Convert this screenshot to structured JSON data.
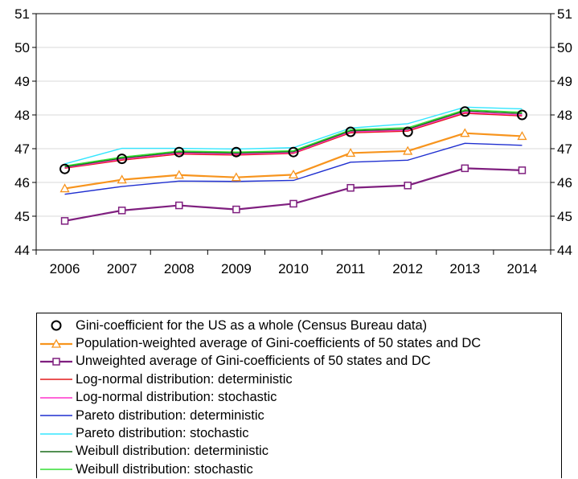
{
  "chart_data": {
    "type": "line",
    "x": [
      "2006",
      "2007",
      "2008",
      "2009",
      "2010",
      "2011",
      "2012",
      "2013",
      "2014"
    ],
    "ylim": [
      44,
      51
    ],
    "yticks": [
      44,
      45,
      46,
      47,
      48,
      49,
      50,
      51
    ],
    "right_axis_ticks": [
      44,
      45,
      46,
      47,
      48,
      49,
      50,
      51
    ],
    "grid": "horizontal",
    "legend_position": "bottom",
    "series": [
      {
        "name": "Gini-coefficient for the US as a whole (Census Bureau data)",
        "color": "#000000",
        "style": "markers-only",
        "marker": "circle",
        "values": [
          46.4,
          46.7,
          46.9,
          46.9,
          46.9,
          47.5,
          47.5,
          48.1,
          48.0
        ]
      },
      {
        "name": "Population-weighted average of Gini-coefficients of 50 states and DC",
        "color": "#f7941d",
        "style": "line",
        "marker": "triangle",
        "values": [
          45.82,
          46.08,
          46.22,
          46.15,
          46.23,
          46.87,
          46.93,
          47.46,
          47.37
        ]
      },
      {
        "name": "Unweighted average of Gini-coefficients of 50 states and DC",
        "color": "#7f1f7f",
        "style": "line",
        "marker": "square",
        "values": [
          44.86,
          45.17,
          45.32,
          45.2,
          45.37,
          45.84,
          45.91,
          46.42,
          46.36
        ]
      },
      {
        "name": "Log-normal distribution: deterministic",
        "color": "#e41a1c",
        "style": "line",
        "marker": "none",
        "values": [
          46.42,
          46.66,
          46.84,
          46.81,
          46.86,
          47.47,
          47.52,
          48.05,
          47.97
        ]
      },
      {
        "name": "Log-normal distribution: stochastic",
        "color": "#ff33cc",
        "style": "line",
        "marker": "none",
        "values": [
          46.44,
          46.69,
          46.87,
          46.84,
          46.88,
          47.5,
          47.55,
          48.08,
          48.0
        ]
      },
      {
        "name": "Pareto distribution: deterministic",
        "color": "#1f2fd0",
        "style": "line",
        "marker": "none",
        "values": [
          45.65,
          45.88,
          46.04,
          46.03,
          46.06,
          46.6,
          46.66,
          47.16,
          47.1
        ]
      },
      {
        "name": "Pareto distribution: stochastic",
        "color": "#33e6ff",
        "style": "line",
        "marker": "none",
        "values": [
          46.55,
          47.01,
          47.01,
          46.99,
          47.03,
          47.61,
          47.74,
          48.23,
          48.18
        ]
      },
      {
        "name": "Weibull distribution: deterministic",
        "color": "#1a6b1a",
        "style": "line",
        "marker": "none",
        "values": [
          46.46,
          46.72,
          46.9,
          46.87,
          46.91,
          47.53,
          47.58,
          48.12,
          48.04
        ]
      },
      {
        "name": "Weibull distribution: stochastic",
        "color": "#33dd33",
        "style": "line",
        "marker": "none",
        "values": [
          46.49,
          46.75,
          46.93,
          46.9,
          46.94,
          47.56,
          47.62,
          48.15,
          48.08
        ]
      }
    ]
  }
}
